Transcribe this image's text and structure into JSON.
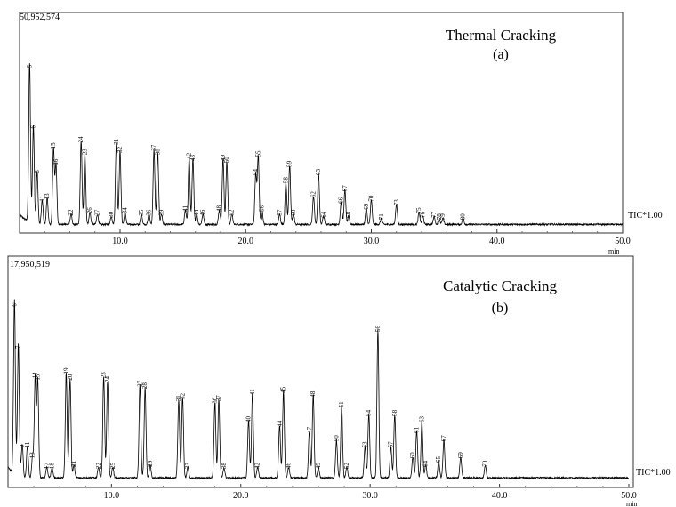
{
  "chart_data": [
    {
      "type": "line",
      "title": "Thermal Cracking",
      "subtitle": "(a)",
      "max_label": "50,952,574",
      "trace_label": "TIC*1.00",
      "xlabel": "min",
      "xlim": [
        2.0,
        50.0
      ],
      "x_ticks": [
        10.0,
        20.0,
        30.0,
        40.0,
        50.0
      ],
      "x_tick_labels": [
        "10.0",
        "20.0",
        "30.0",
        "40.0",
        "50.0"
      ],
      "ylim": [
        0,
        1
      ],
      "grid": false,
      "peaks": [
        {
          "label": "5",
          "rt": 2.8,
          "h": 0.78
        },
        {
          "label": "6",
          "rt": 3.1,
          "h": 0.48
        },
        {
          "label": "8",
          "rt": 3.4,
          "h": 0.26
        },
        {
          "label": "11",
          "rt": 3.8,
          "h": 0.12
        },
        {
          "label": "13",
          "rt": 4.2,
          "h": 0.13
        },
        {
          "label": "15",
          "rt": 4.7,
          "h": 0.38
        },
        {
          "label": "16",
          "rt": 4.9,
          "h": 0.3
        },
        {
          "label": "22",
          "rt": 6.1,
          "h": 0.05
        },
        {
          "label": "24",
          "rt": 6.9,
          "h": 0.41
        },
        {
          "label": "23",
          "rt": 7.2,
          "h": 0.35
        },
        {
          "label": "26",
          "rt": 7.6,
          "h": 0.06
        },
        {
          "label": "27",
          "rt": 8.2,
          "h": 0.05
        },
        {
          "label": "30",
          "rt": 9.3,
          "h": 0.04
        },
        {
          "label": "31",
          "rt": 9.7,
          "h": 0.4
        },
        {
          "label": "32",
          "rt": 10.0,
          "h": 0.36
        },
        {
          "label": "34",
          "rt": 10.4,
          "h": 0.06
        },
        {
          "label": "35",
          "rt": 11.7,
          "h": 0.05
        },
        {
          "label": "36",
          "rt": 12.3,
          "h": 0.05
        },
        {
          "label": "37",
          "rt": 12.7,
          "h": 0.37
        },
        {
          "label": "38",
          "rt": 13.0,
          "h": 0.35
        },
        {
          "label": "39",
          "rt": 13.3,
          "h": 0.05
        },
        {
          "label": "41",
          "rt": 15.2,
          "h": 0.07
        },
        {
          "label": "42",
          "rt": 15.5,
          "h": 0.33
        },
        {
          "label": "43",
          "rt": 15.8,
          "h": 0.32
        },
        {
          "label": "44",
          "rt": 16.1,
          "h": 0.05
        },
        {
          "label": "46",
          "rt": 16.6,
          "h": 0.05
        },
        {
          "label": "48",
          "rt": 17.9,
          "h": 0.07
        },
        {
          "label": "49",
          "rt": 18.2,
          "h": 0.32
        },
        {
          "label": "50",
          "rt": 18.5,
          "h": 0.31
        },
        {
          "label": "52",
          "rt": 18.9,
          "h": 0.05
        },
        {
          "label": "54",
          "rt": 20.8,
          "h": 0.25
        },
        {
          "label": "55",
          "rt": 21.0,
          "h": 0.34
        },
        {
          "label": "56",
          "rt": 21.3,
          "h": 0.07
        },
        {
          "label": "57",
          "rt": 22.7,
          "h": 0.05
        },
        {
          "label": "58",
          "rt": 23.2,
          "h": 0.21
        },
        {
          "label": "59",
          "rt": 23.5,
          "h": 0.29
        },
        {
          "label": "60",
          "rt": 23.8,
          "h": 0.05
        },
        {
          "label": "62",
          "rt": 25.4,
          "h": 0.14
        },
        {
          "label": "63",
          "rt": 25.8,
          "h": 0.25
        },
        {
          "label": "64",
          "rt": 26.2,
          "h": 0.04
        },
        {
          "label": "66",
          "rt": 27.6,
          "h": 0.11
        },
        {
          "label": "67",
          "rt": 27.9,
          "h": 0.17
        },
        {
          "label": "68",
          "rt": 28.2,
          "h": 0.04
        },
        {
          "label": "69",
          "rt": 29.6,
          "h": 0.08
        },
        {
          "label": "70",
          "rt": 30.0,
          "h": 0.12
        },
        {
          "label": "71",
          "rt": 30.8,
          "h": 0.03
        },
        {
          "label": "73",
          "rt": 32.0,
          "h": 0.1
        },
        {
          "label": "75",
          "rt": 33.8,
          "h": 0.06
        },
        {
          "label": "76",
          "rt": 34.1,
          "h": 0.04
        },
        {
          "label": "77",
          "rt": 35.0,
          "h": 0.04
        },
        {
          "label": "78",
          "rt": 35.4,
          "h": 0.03
        },
        {
          "label": "79",
          "rt": 35.7,
          "h": 0.03
        },
        {
          "label": "80",
          "rt": 37.3,
          "h": 0.03
        }
      ]
    },
    {
      "type": "line",
      "title": "Catalytic Cracking",
      "subtitle": "(b)",
      "max_label": "17,950,519",
      "trace_label": "TIC*1.00",
      "xlabel": "min",
      "xlim": [
        2.0,
        50.0
      ],
      "x_ticks": [
        10.0,
        20.0,
        30.0,
        40.0,
        50.0
      ],
      "x_tick_labels": [
        "10.0",
        "20.0",
        "30.0",
        "40.0",
        "50.0"
      ],
      "ylim": [
        0,
        1
      ],
      "grid": false,
      "peaks": [
        {
          "label": "6",
          "rt": 2.5,
          "h": 0.82
        },
        {
          "label": "7",
          "rt": 2.8,
          "h": 0.62
        },
        {
          "label": "9",
          "rt": 3.1,
          "h": 0.15
        },
        {
          "label": "11",
          "rt": 3.5,
          "h": 0.15
        },
        {
          "label": "13",
          "rt": 3.9,
          "h": 0.1
        },
        {
          "label": "14",
          "rt": 4.1,
          "h": 0.48
        },
        {
          "label": "15",
          "rt": 4.3,
          "h": 0.47
        },
        {
          "label": "17",
          "rt": 5.0,
          "h": 0.05
        },
        {
          "label": "18",
          "rt": 5.4,
          "h": 0.05
        },
        {
          "label": "19",
          "rt": 6.5,
          "h": 0.5
        },
        {
          "label": "20",
          "rt": 6.8,
          "h": 0.47
        },
        {
          "label": "21",
          "rt": 7.1,
          "h": 0.06
        },
        {
          "label": "22",
          "rt": 9.0,
          "h": 0.05
        },
        {
          "label": "23",
          "rt": 9.4,
          "h": 0.48
        },
        {
          "label": "24",
          "rt": 9.7,
          "h": 0.46
        },
        {
          "label": "25",
          "rt": 10.1,
          "h": 0.05
        },
        {
          "label": "27",
          "rt": 12.2,
          "h": 0.44
        },
        {
          "label": "28",
          "rt": 12.6,
          "h": 0.43
        },
        {
          "label": "29",
          "rt": 13.0,
          "h": 0.06
        },
        {
          "label": "31",
          "rt": 15.2,
          "h": 0.37
        },
        {
          "label": "32",
          "rt": 15.5,
          "h": 0.38
        },
        {
          "label": "33",
          "rt": 15.9,
          "h": 0.05
        },
        {
          "label": "36",
          "rt": 18.0,
          "h": 0.36
        },
        {
          "label": "37",
          "rt": 18.3,
          "h": 0.37
        },
        {
          "label": "38",
          "rt": 18.7,
          "h": 0.05
        },
        {
          "label": "40",
          "rt": 20.6,
          "h": 0.27
        },
        {
          "label": "41",
          "rt": 20.9,
          "h": 0.4
        },
        {
          "label": "42",
          "rt": 21.3,
          "h": 0.05
        },
        {
          "label": "44",
          "rt": 23.0,
          "h": 0.25
        },
        {
          "label": "45",
          "rt": 23.3,
          "h": 0.41
        },
        {
          "label": "46",
          "rt": 23.7,
          "h": 0.05
        },
        {
          "label": "47",
          "rt": 25.3,
          "h": 0.22
        },
        {
          "label": "48",
          "rt": 25.6,
          "h": 0.39
        },
        {
          "label": "49",
          "rt": 26.0,
          "h": 0.05
        },
        {
          "label": "50",
          "rt": 27.4,
          "h": 0.18
        },
        {
          "label": "51",
          "rt": 27.8,
          "h": 0.34
        },
        {
          "label": "52",
          "rt": 28.2,
          "h": 0.05
        },
        {
          "label": "53",
          "rt": 29.6,
          "h": 0.15
        },
        {
          "label": "54",
          "rt": 29.9,
          "h": 0.3
        },
        {
          "label": "56",
          "rt": 30.6,
          "h": 0.7
        },
        {
          "label": "57",
          "rt": 31.6,
          "h": 0.15
        },
        {
          "label": "58",
          "rt": 31.9,
          "h": 0.3
        },
        {
          "label": "60",
          "rt": 33.3,
          "h": 0.1
        },
        {
          "label": "61",
          "rt": 33.6,
          "h": 0.22
        },
        {
          "label": "63",
          "rt": 34.0,
          "h": 0.27
        },
        {
          "label": "64",
          "rt": 34.3,
          "h": 0.06
        },
        {
          "label": "65",
          "rt": 35.3,
          "h": 0.08
        },
        {
          "label": "67",
          "rt": 35.7,
          "h": 0.18
        },
        {
          "label": "69",
          "rt": 37.0,
          "h": 0.1
        },
        {
          "label": "70",
          "rt": 38.9,
          "h": 0.06
        }
      ]
    }
  ]
}
